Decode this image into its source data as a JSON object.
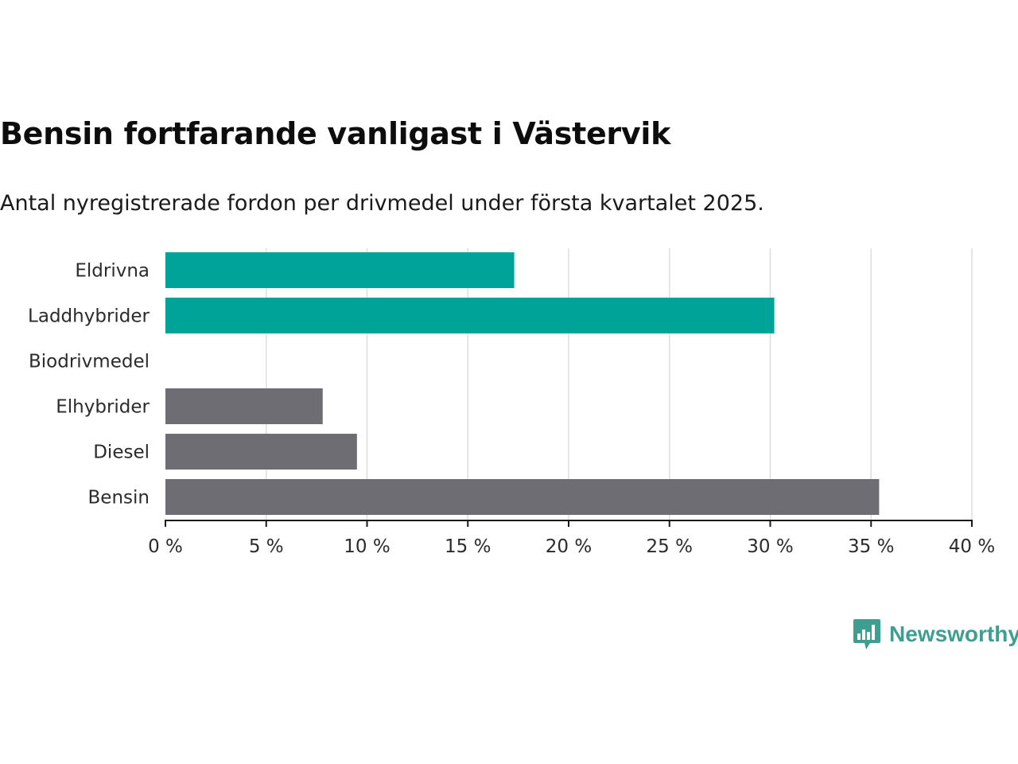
{
  "header": {
    "title": "Bensin fortfarande vanligast i Västervik",
    "subtitle": "Antal nyregistrerade fordon per drivmedel under första kvartalet 2025."
  },
  "chart_data": {
    "type": "bar",
    "orientation": "horizontal",
    "categories": [
      "Eldrivna",
      "Laddhybrider",
      "Biodrivmedel",
      "Elhybrider",
      "Diesel",
      "Bensin"
    ],
    "values": [
      17.3,
      30.2,
      0,
      7.8,
      9.5,
      35.4
    ],
    "colors": [
      "#00a398",
      "#00a398",
      "#6e6d73",
      "#6e6d73",
      "#6e6d73",
      "#6e6d73"
    ],
    "xlim": [
      0,
      40
    ],
    "xticks": [
      0,
      5,
      10,
      15,
      20,
      25,
      30,
      35,
      40
    ],
    "tick_suffix": " %",
    "grid": true,
    "grid_color": "#dedede"
  },
  "logo": {
    "text": "Newsworthy",
    "icon": "bar-chart-bubble-icon",
    "color": "#3e9e92"
  }
}
